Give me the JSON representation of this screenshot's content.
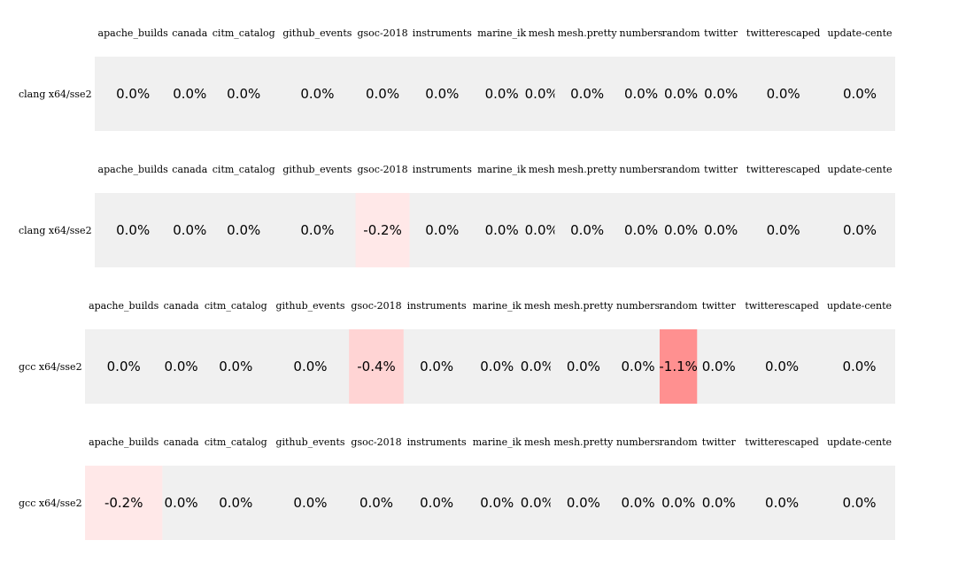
{
  "chart_data": [
    {
      "type": "heatmap",
      "row_label": "clang x64/sse2",
      "columns": [
        "apache_builds",
        "canada",
        "citm_catalog",
        "github_events",
        "gsoc-2018",
        "instruments",
        "marine_ik",
        "mesh",
        "mesh.pretty",
        "numbers",
        "random",
        "twitter",
        "twitterescaped",
        "update-cente"
      ],
      "values": [
        0.0,
        0.0,
        0.0,
        0.0,
        0.0,
        0.0,
        0.0,
        0.0,
        0.0,
        0.0,
        0.0,
        0.0,
        0.0,
        0.0
      ],
      "value_labels": [
        "0.0%",
        "0.0%",
        "0.0%",
        "0.0%",
        "0.0%",
        "0.0%",
        "0.0%",
        "0.0%",
        "0.0%",
        "0.0%",
        "0.0%",
        "0.0%",
        "0.0%",
        "0.0%"
      ]
    },
    {
      "type": "heatmap",
      "row_label": "clang x64/sse2",
      "columns": [
        "apache_builds",
        "canada",
        "citm_catalog",
        "github_events",
        "gsoc-2018",
        "instruments",
        "marine_ik",
        "mesh",
        "mesh.pretty",
        "numbers",
        "random",
        "twitter",
        "twitterescaped",
        "update-cente"
      ],
      "values": [
        0.0,
        0.0,
        0.0,
        0.0,
        -0.2,
        0.0,
        0.0,
        0.0,
        0.0,
        0.0,
        0.0,
        0.0,
        0.0,
        0.0
      ],
      "value_labels": [
        "0.0%",
        "0.0%",
        "0.0%",
        "0.0%",
        "-0.2%",
        "0.0%",
        "0.0%",
        "0.0%",
        "0.0%",
        "0.0%",
        "0.0%",
        "0.0%",
        "0.0%",
        "0.0%"
      ]
    },
    {
      "type": "heatmap",
      "row_label": "gcc x64/sse2",
      "columns": [
        "apache_builds",
        "canada",
        "citm_catalog",
        "github_events",
        "gsoc-2018",
        "instruments",
        "marine_ik",
        "mesh",
        "mesh.pretty",
        "numbers",
        "random",
        "twitter",
        "twitterescaped",
        "update-cente"
      ],
      "values": [
        0.0,
        0.0,
        0.0,
        0.0,
        -0.4,
        0.0,
        0.0,
        0.0,
        0.0,
        0.0,
        -1.1,
        0.0,
        0.0,
        0.0
      ],
      "value_labels": [
        "0.0%",
        "0.0%",
        "0.0%",
        "0.0%",
        "-0.4%",
        "0.0%",
        "0.0%",
        "0.0%",
        "0.0%",
        "0.0%",
        "-1.1%",
        "0.0%",
        "0.0%",
        "0.0%"
      ]
    },
    {
      "type": "heatmap",
      "row_label": "gcc x64/sse2",
      "columns": [
        "apache_builds",
        "canada",
        "citm_catalog",
        "github_events",
        "gsoc-2018",
        "instruments",
        "marine_ik",
        "mesh",
        "mesh.pretty",
        "numbers",
        "random",
        "twitter",
        "twitterescaped",
        "update-cente"
      ],
      "values": [
        -0.2,
        0.0,
        0.0,
        0.0,
        0.0,
        0.0,
        0.0,
        0.0,
        0.0,
        0.0,
        0.0,
        0.0,
        0.0,
        0.0
      ],
      "value_labels": [
        "-0.2%",
        "0.0%",
        "0.0%",
        "0.0%",
        "0.0%",
        "0.0%",
        "0.0%",
        "0.0%",
        "0.0%",
        "0.0%",
        "0.0%",
        "0.0%",
        "0.0%",
        "0.0%"
      ]
    }
  ],
  "colors": {
    "neutral": "#f0f0f0",
    "neg_small": "#ffe8e8",
    "neg_medium": "#ffd4d4",
    "neg_large": "#ff9090"
  }
}
